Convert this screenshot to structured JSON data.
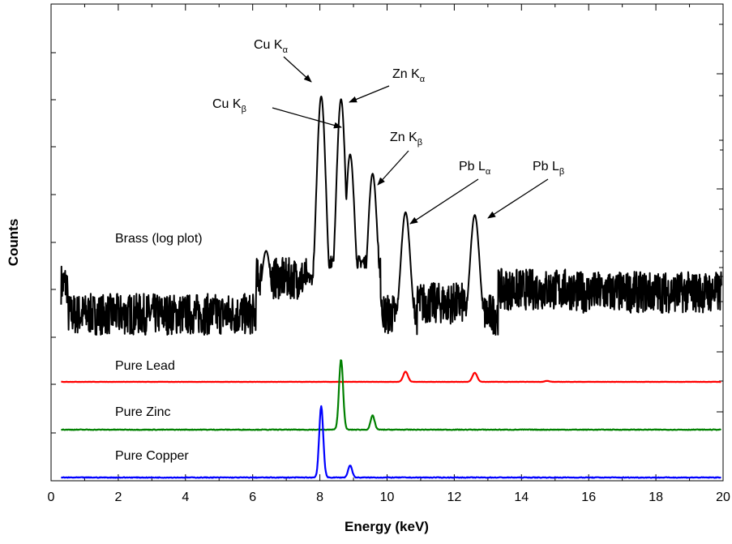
{
  "chart_data": {
    "type": "line",
    "title": "",
    "xlabel": "Energy (keV)",
    "ylabel": "Counts",
    "xlim": [
      0,
      20
    ],
    "xticks": [
      "0",
      "2",
      "4",
      "6",
      "8",
      "10",
      "12",
      "14",
      "16",
      "18",
      "20"
    ],
    "grid": false,
    "series_labels": [
      {
        "text": "Brass (log plot)",
        "x": 2.0,
        "level": 0.72
      },
      {
        "text": "Pure Lead",
        "x": 2.0,
        "level": 0.965
      },
      {
        "text": "Pure Zinc",
        "x": 2.0,
        "level": 0.965
      },
      {
        "text": "Pure Copper",
        "x": 2.0,
        "level": 0.965
      }
    ],
    "annotations": [
      {
        "main": "Cu K",
        "sub": "α"
      },
      {
        "main": "Zn K",
        "sub": "α"
      },
      {
        "main": "Cu K",
        "sub": "β"
      },
      {
        "main": "Zn K",
        "sub": "β"
      },
      {
        "main": "Pb L",
        "sub": "α"
      },
      {
        "main": "Pb L",
        "sub": "β"
      }
    ],
    "series": [
      {
        "color": "#000000",
        "note": "relative height within brass panel (0-1)",
        "baseline": 0.11,
        "peaks": [
          {
            "x": 6.4,
            "height": 0.34
          },
          {
            "x": 8.04,
            "height": 0.9
          },
          {
            "x": 8.63,
            "height": 0.89
          },
          {
            "x": 8.9,
            "height": 0.69
          },
          {
            "x": 9.57,
            "height": 0.62
          },
          {
            "x": 10.55,
            "height": 0.48
          },
          {
            "x": 12.61,
            "height": 0.47
          }
        ]
      },
      {
        "color": "#ff0000",
        "peaks": [
          {
            "x": 10.55,
            "height": 0.45
          },
          {
            "x": 12.61,
            "height": 0.4
          },
          {
            "x": 14.76,
            "height": 0.04
          }
        ]
      },
      {
        "color": "#008000",
        "peaks": [
          {
            "x": 8.63,
            "height": 1.0
          },
          {
            "x": 9.57,
            "height": 0.2
          }
        ]
      },
      {
        "color": "#0000ff",
        "peaks": [
          {
            "x": 8.04,
            "height": 1.0
          },
          {
            "x": 8.9,
            "height": 0.17
          }
        ]
      }
    ]
  }
}
